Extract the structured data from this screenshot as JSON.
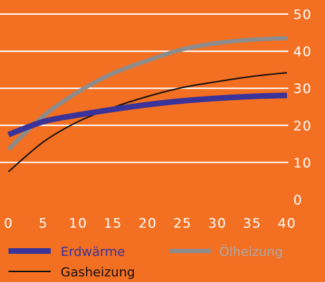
{
  "chart_data": {
    "type": "line",
    "title": "",
    "xlabel": "",
    "ylabel": "",
    "x_ticks": [
      "0",
      "5",
      "10",
      "15",
      "20",
      "25",
      "30",
      "35",
      "40"
    ],
    "y_ticks": [
      "0",
      "10",
      "20",
      "30",
      "40",
      "50"
    ],
    "xlim": [
      0,
      40
    ],
    "ylim": [
      0,
      50
    ],
    "y_axis_side": "right",
    "grid": "horizontal",
    "legend_position": "bottom",
    "x": [
      0,
      5,
      10,
      15,
      20,
      25,
      30,
      35,
      40
    ],
    "series": [
      {
        "name": "Erdwärme",
        "color": "#3A3399",
        "values": [
          17.5,
          21,
          22.8,
          24.3,
          25.6,
          26.6,
          27.3,
          27.8,
          28.1
        ]
      },
      {
        "name": "Ölheizung",
        "color": "#8C8C8C",
        "values": [
          13.5,
          22.5,
          29,
          34,
          37.5,
          40.5,
          42.2,
          43.1,
          43.5
        ]
      },
      {
        "name": "Gasheizung",
        "color": "#111111",
        "values": [
          7.5,
          15.5,
          21,
          24.8,
          27.8,
          30.2,
          31.8,
          33.2,
          34.2
        ]
      }
    ]
  },
  "colors": {
    "background": "#F36F21",
    "gridline": "#FFFFFF",
    "axis_text": "#FFFFFF"
  }
}
